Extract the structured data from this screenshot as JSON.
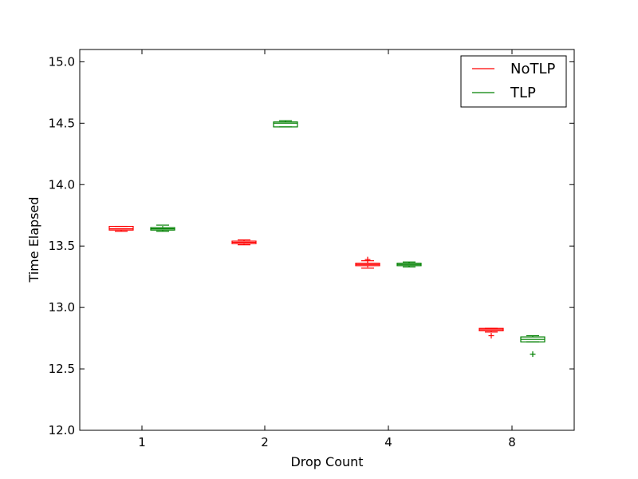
{
  "chart_data": {
    "type": "boxplot",
    "xlabel": "Drop Count",
    "ylabel": "Time Elapsed",
    "categories": [
      "1",
      "2",
      "4",
      "8"
    ],
    "ylim": [
      12.0,
      15.1
    ],
    "yticks": [
      "12.0",
      "12.5",
      "13.0",
      "13.5",
      "14.0",
      "14.5",
      "15.0"
    ],
    "legend": {
      "placement": "top-right",
      "entries": [
        "NoTLP",
        "TLP"
      ]
    },
    "series": [
      {
        "name": "NoTLP",
        "color": "#ff0000",
        "boxes": [
          {
            "category": "1",
            "whislo": 13.62,
            "q1": 13.63,
            "med": 13.64,
            "q3": 13.66,
            "whishi": 13.66,
            "fliers": []
          },
          {
            "category": "2",
            "whislo": 13.51,
            "q1": 13.52,
            "med": 13.53,
            "q3": 13.54,
            "whishi": 13.55,
            "fliers": []
          },
          {
            "category": "4",
            "whislo": 13.32,
            "q1": 13.34,
            "med": 13.35,
            "q3": 13.36,
            "whishi": 13.38,
            "fliers": [
              13.39
            ]
          },
          {
            "category": "8",
            "whislo": 12.8,
            "q1": 12.81,
            "med": 12.82,
            "q3": 12.83,
            "whishi": 12.83,
            "fliers": [
              12.77
            ]
          }
        ]
      },
      {
        "name": "TLP",
        "color": "#008000",
        "boxes": [
          {
            "category": "1",
            "whislo": 13.62,
            "q1": 13.63,
            "med": 13.64,
            "q3": 13.65,
            "whishi": 13.67,
            "fliers": []
          },
          {
            "category": "2",
            "whislo": 14.47,
            "q1": 14.47,
            "med": 14.5,
            "q3": 14.51,
            "whishi": 14.52,
            "fliers": []
          },
          {
            "category": "4",
            "whislo": 13.33,
            "q1": 13.34,
            "med": 13.35,
            "q3": 13.36,
            "whishi": 13.37,
            "fliers": []
          },
          {
            "category": "8",
            "whislo": 12.72,
            "q1": 12.72,
            "med": 12.74,
            "q3": 12.76,
            "whishi": 12.77,
            "fliers": [
              12.62
            ]
          }
        ]
      }
    ]
  }
}
